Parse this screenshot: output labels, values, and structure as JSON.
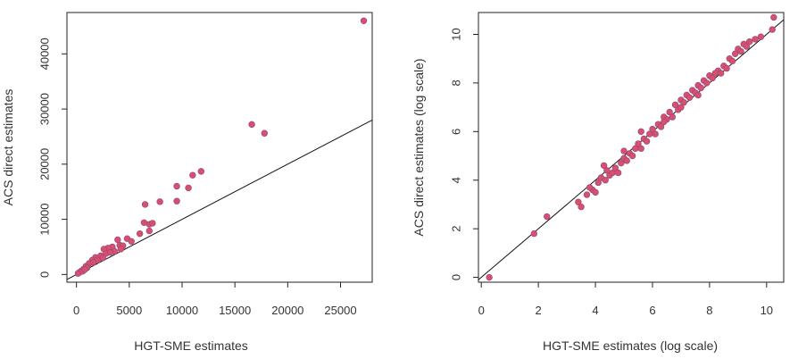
{
  "chart_data": [
    {
      "type": "scatter",
      "xlabel": "HGT-SME estimates",
      "ylabel": "ACS direct estimates",
      "xlim": [
        -900,
        28000
      ],
      "ylim": [
        -1400,
        47500
      ],
      "xticks": [
        0,
        5000,
        10000,
        15000,
        20000,
        25000
      ],
      "yticks": [
        0,
        10000,
        20000,
        30000,
        40000
      ],
      "xtick_labels": [
        "0",
        "5000",
        "10000",
        "15000",
        "20000",
        "25000"
      ],
      "ytick_labels": [
        "0",
        "10000",
        "20000",
        "30000",
        "40000"
      ],
      "reference_line": {
        "slope": 1,
        "intercept": 0
      },
      "grid": false,
      "point_color": "#d9506f",
      "point_edge_color": "#a04a78",
      "points": [
        [
          27200,
          46000
        ],
        [
          16600,
          27200
        ],
        [
          17800,
          25600
        ],
        [
          11800,
          18700
        ],
        [
          11000,
          18000
        ],
        [
          9500,
          16000
        ],
        [
          10600,
          15700
        ],
        [
          9500,
          13300
        ],
        [
          7900,
          13200
        ],
        [
          6500,
          12700
        ],
        [
          6400,
          9400
        ],
        [
          6900,
          9100
        ],
        [
          7200,
          9300
        ],
        [
          6900,
          7900
        ],
        [
          6000,
          7400
        ],
        [
          4800,
          6500
        ],
        [
          5200,
          6000
        ],
        [
          3900,
          6300
        ],
        [
          4100,
          5300
        ],
        [
          3400,
          5000
        ],
        [
          3000,
          4800
        ],
        [
          2600,
          4600
        ],
        [
          2300,
          3400
        ],
        [
          1800,
          3100
        ],
        [
          1500,
          2600
        ],
        [
          1200,
          2000
        ],
        [
          900,
          1500
        ],
        [
          700,
          1000
        ],
        [
          500,
          700
        ],
        [
          300,
          400
        ],
        [
          150,
          200
        ],
        [
          2800,
          3800
        ],
        [
          3600,
          4200
        ],
        [
          4400,
          5200
        ],
        [
          1000,
          1200
        ],
        [
          600,
          600
        ],
        [
          2000,
          2600
        ],
        [
          2500,
          3000
        ],
        [
          3200,
          4000
        ],
        [
          4200,
          4600
        ],
        [
          1600,
          2200
        ],
        [
          800,
          900
        ]
      ]
    },
    {
      "type": "scatter",
      "xlabel": "HGT-SME estimates (log scale)",
      "ylabel": "ACS direct estimates (log scale)",
      "xlim": [
        -0.1,
        10.6
      ],
      "ylim": [
        -0.2,
        10.9
      ],
      "xticks": [
        0,
        2,
        4,
        6,
        8,
        10
      ],
      "yticks": [
        0,
        2,
        4,
        6,
        8,
        10
      ],
      "xtick_labels": [
        "0",
        "2",
        "4",
        "6",
        "8",
        "10"
      ],
      "ytick_labels": [
        "0",
        "2",
        "4",
        "6",
        "8",
        "10"
      ],
      "reference_line": {
        "slope": 1,
        "intercept": 0
      },
      "grid": false,
      "point_color": "#d9506f",
      "point_edge_color": "#a04a78",
      "points": [
        [
          0.28,
          0.0
        ],
        [
          1.85,
          1.8
        ],
        [
          2.3,
          2.5
        ],
        [
          3.4,
          3.1
        ],
        [
          3.5,
          2.9
        ],
        [
          3.7,
          3.4
        ],
        [
          3.9,
          3.6
        ],
        [
          4.0,
          3.5
        ],
        [
          4.1,
          3.9
        ],
        [
          4.2,
          4.1
        ],
        [
          4.3,
          4.6
        ],
        [
          4.35,
          4.0
        ],
        [
          4.5,
          4.2
        ],
        [
          4.6,
          4.3
        ],
        [
          4.7,
          4.5
        ],
        [
          4.8,
          4.3
        ],
        [
          4.9,
          4.7
        ],
        [
          5.0,
          4.9
        ],
        [
          5.1,
          4.8
        ],
        [
          5.2,
          5.1
        ],
        [
          5.3,
          5.0
        ],
        [
          5.4,
          5.3
        ],
        [
          5.5,
          5.5
        ],
        [
          5.6,
          5.3
        ],
        [
          5.7,
          5.7
        ],
        [
          5.8,
          5.6
        ],
        [
          5.9,
          5.9
        ],
        [
          6.0,
          6.1
        ],
        [
          6.1,
          5.9
        ],
        [
          6.2,
          6.3
        ],
        [
          6.3,
          6.2
        ],
        [
          6.4,
          6.6
        ],
        [
          6.5,
          6.5
        ],
        [
          6.6,
          6.8
        ],
        [
          6.7,
          6.6
        ],
        [
          6.8,
          7.1
        ],
        [
          6.9,
          6.9
        ],
        [
          7.0,
          7.3
        ],
        [
          7.1,
          7.2
        ],
        [
          7.2,
          7.5
        ],
        [
          7.3,
          7.4
        ],
        [
          7.4,
          7.7
        ],
        [
          7.5,
          7.6
        ],
        [
          7.6,
          7.9
        ],
        [
          7.7,
          7.8
        ],
        [
          7.8,
          8.1
        ],
        [
          7.9,
          8.0
        ],
        [
          8.0,
          8.3
        ],
        [
          8.1,
          8.2
        ],
        [
          8.3,
          8.5
        ],
        [
          8.4,
          8.4
        ],
        [
          8.5,
          8.7
        ],
        [
          8.6,
          8.6
        ],
        [
          8.7,
          9.0
        ],
        [
          8.8,
          8.9
        ],
        [
          8.9,
          9.2
        ],
        [
          9.0,
          9.4
        ],
        [
          9.1,
          9.3
        ],
        [
          9.2,
          9.6
        ],
        [
          9.3,
          9.5
        ],
        [
          9.4,
          9.7
        ],
        [
          9.6,
          9.8
        ],
        [
          9.8,
          9.9
        ],
        [
          10.2,
          10.2
        ],
        [
          10.25,
          10.7
        ],
        [
          5.0,
          5.2
        ],
        [
          5.6,
          6.0
        ],
        [
          6.4,
          6.4
        ],
        [
          7.0,
          7.0
        ],
        [
          7.6,
          7.5
        ],
        [
          8.2,
          8.4
        ],
        [
          4.4,
          4.4
        ],
        [
          3.8,
          3.7
        ]
      ]
    }
  ]
}
